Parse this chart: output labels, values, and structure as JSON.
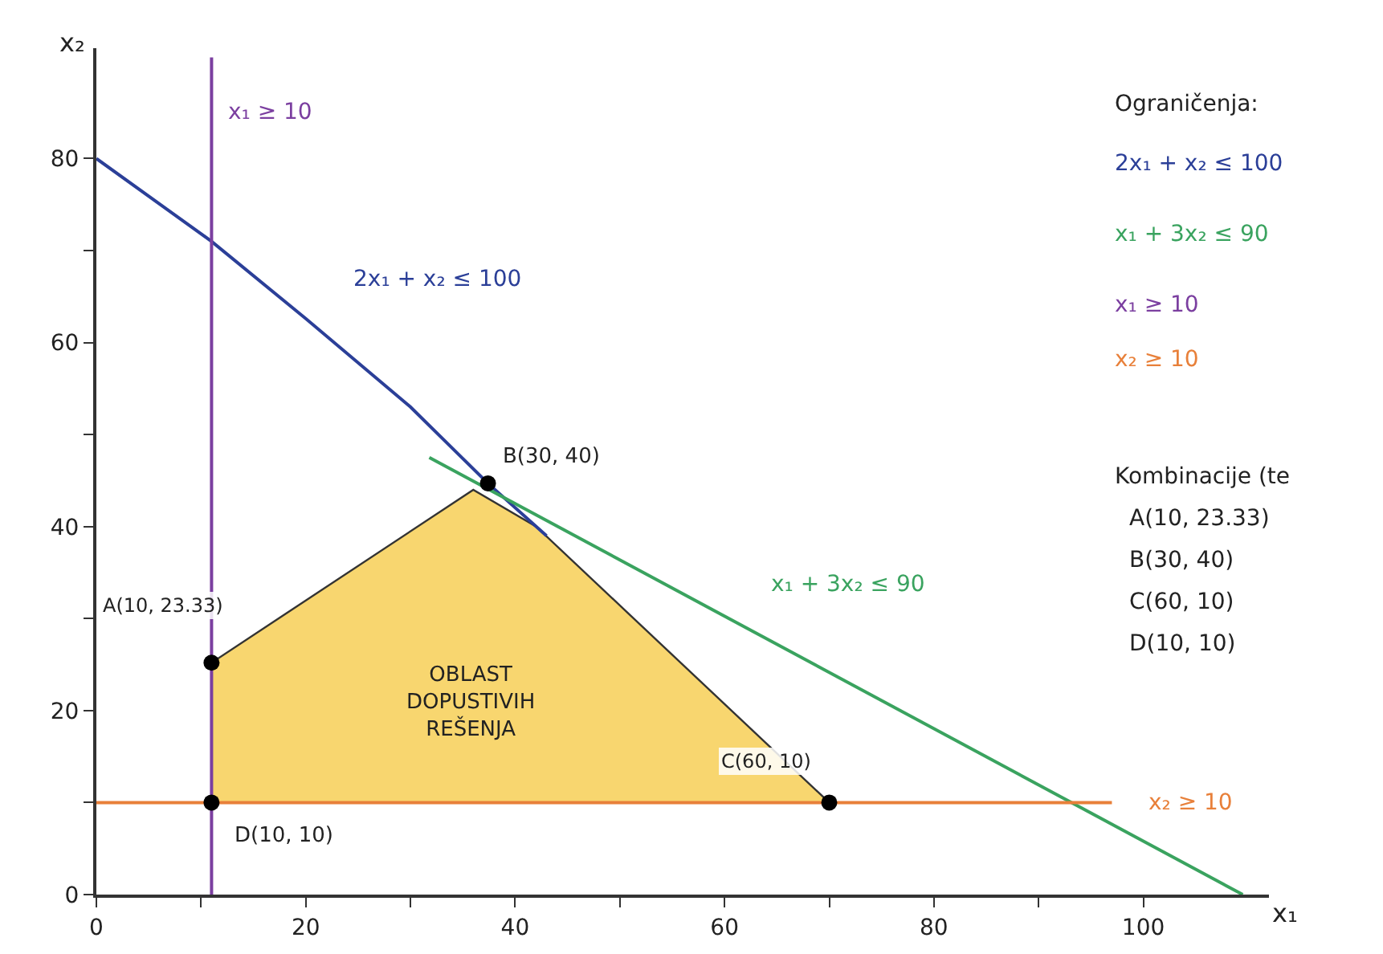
{
  "chart_data": {
    "type": "line",
    "xlabel": "x₁",
    "ylabel": "x₂",
    "legend_title": "Ograničenja:",
    "xlim": [
      0,
      112
    ],
    "ylim": [
      0,
      92
    ],
    "xticks": [
      0,
      {
        "value": 10,
        "label": null
      },
      20,
      {
        "value": 30,
        "label": null
      },
      40,
      {
        "value": 50,
        "label": null
      },
      60,
      {
        "value": 70,
        "label": null
      },
      80,
      {
        "value": 90,
        "label": null
      },
      100
    ],
    "yticks": [
      0,
      {
        "value": 10,
        "label": null
      },
      20,
      {
        "value": 30,
        "label": null
      },
      40,
      {
        "value": 50,
        "label": null
      },
      60,
      {
        "value": 70,
        "label": null
      },
      80
    ],
    "series": [
      {
        "type": "area",
        "color": "#f8d66f",
        "x": [
          11,
          11,
          36,
          42,
          70
        ],
        "values": [
          10,
          25.2,
          44,
          40,
          10
        ]
      },
      {
        "name": "2x₁ + x₂ ≤ 100",
        "color": "#2b3f98",
        "x": [
          0,
          11,
          20,
          30,
          37.4,
          43
        ],
        "values": [
          80,
          71,
          62.6,
          53,
          44.7,
          39
        ]
      },
      {
        "name": "x₁ + 3x₂ ≤ 90",
        "color": "#3aa35f",
        "x": [
          31.8,
          109.5
        ],
        "values": [
          47.5,
          0
        ]
      },
      {
        "name": "x₁ ≥ 10",
        "color": "#7b3fa0",
        "x": [
          11,
          11
        ],
        "values": [
          0,
          91
        ]
      },
      {
        "name": "x₂ ≥ 10",
        "color": "#e8803a",
        "x": [
          0,
          97
        ],
        "values": [
          10,
          10
        ]
      },
      {
        "type": "scatter",
        "marker": "circle",
        "color": "#000000",
        "x": [
          11,
          11,
          37.4,
          70
        ],
        "values": [
          25.2,
          10,
          44.7,
          10
        ]
      }
    ],
    "annotations": [
      "x₁ ≥ 10",
      "2x₁ + x₂ ≤ 100",
      "x₁ + 3x₂ ≤ 90",
      "x₂ ≥ 10",
      "B(30, 40)",
      "A(10, 23.33)",
      "C(60, 10)",
      "D(10, 10)",
      "OBLAST\nDOPUSTIVIH\nREŠENJA",
      "Kombinacije (te",
      "A(10, 23.33)",
      "B(30, 40)",
      "C(60, 10)",
      "D(10, 10)"
    ]
  }
}
